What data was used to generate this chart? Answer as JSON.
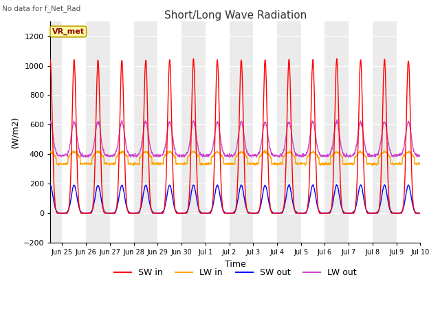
{
  "title": "Short/Long Wave Radiation",
  "subtitle": "No data for f_Net_Rad",
  "xlabel": "Time",
  "ylabel": "(W/m2)",
  "ylim": [
    -200,
    1300
  ],
  "yticks": [
    -200,
    0,
    200,
    400,
    600,
    800,
    1000,
    1200
  ],
  "legend_label": "VR_met",
  "series_labels": [
    "SW in",
    "LW in",
    "SW out",
    "LW out"
  ],
  "series_colors": [
    "red",
    "#FFA500",
    "blue",
    "#CC44CC"
  ],
  "bg_color": "#ffffff",
  "plot_bg": "#ffffff",
  "band_color_dark": "#d8d8d8",
  "band_color_light": "#f0f0f0",
  "sw_in_peak": 1040,
  "sw_out_peak": 190,
  "lw_in_base": 345,
  "lw_in_peak_day": 415,
  "lw_out_base": 390,
  "lw_out_peak": 620,
  "lw_out_night": 390,
  "tick_labels": [
    "Jun 25",
    "Jun 26",
    "Jun 27",
    "Jun 28",
    "Jun 29",
    "Jun 30",
    "Jul 1",
    "Jul 2",
    "Jul 3",
    "Jul 4",
    "Jul 5",
    "Jul 6",
    "Jul 7",
    "Jul 8",
    "Jul 9",
    "Jul 10"
  ],
  "n_ticks": 16
}
